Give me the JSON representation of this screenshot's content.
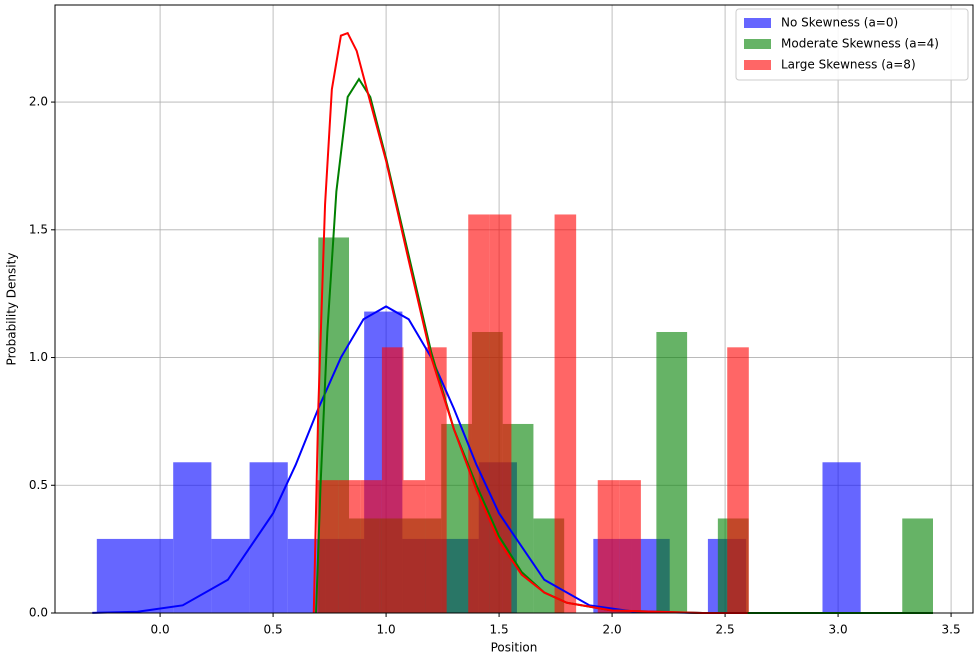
{
  "chart_data": {
    "type": "histogram",
    "xlabel": "Position",
    "ylabel": "Probability Density",
    "xlim": [
      -0.465,
      3.597
    ],
    "ylim": [
      0,
      2.38
    ],
    "xticks": [
      {
        "value": 0,
        "label": "0.0"
      },
      0.5,
      {
        "value": 1,
        "label": "1.0"
      },
      1.5,
      {
        "value": 2,
        "label": "2.0"
      },
      2.5,
      {
        "value": 3,
        "label": "3.0"
      },
      3.5
    ],
    "yticks": [
      {
        "value": 0,
        "label": "0.0"
      },
      0.5,
      {
        "value": 1,
        "label": "1.0"
      },
      1.5,
      {
        "value": 2,
        "label": "2.0"
      }
    ],
    "grid": true,
    "legend": "upper right",
    "alpha": 0.6,
    "series": [
      {
        "name": "No Skewness (a=0)",
        "color": "#0000ff",
        "bins": [
          -0.28,
          -0.111,
          0.058,
          0.227,
          0.396,
          0.565,
          0.734,
          0.903,
          1.072,
          1.241,
          1.41,
          1.579,
          1.748,
          1.917,
          2.086,
          2.255,
          2.424,
          2.593,
          2.762,
          2.931,
          3.1
        ],
        "values": [
          0.29,
          0.29,
          0.59,
          0.29,
          0.59,
          0.29,
          0.29,
          1.18,
          0.29,
          0.29,
          0.59,
          0,
          0,
          0.29,
          0.29,
          0,
          0.29,
          0,
          0,
          0.59
        ]
      },
      {
        "name": "Moderate Skewness (a=4)",
        "color": "#008000",
        "bins": [
          0.7,
          0.836,
          0.972,
          1.108,
          1.244,
          1.38,
          1.516,
          1.652,
          1.788,
          1.924,
          2.06,
          2.196,
          2.332,
          2.468,
          2.604,
          2.74,
          2.876,
          3.012,
          3.148,
          3.284,
          3.42
        ],
        "values": [
          1.47,
          0.37,
          0.37,
          0.37,
          0.74,
          1.1,
          0.74,
          0.37,
          0,
          0,
          0,
          1.1,
          0,
          0.37,
          0,
          0,
          0,
          0,
          0,
          0.37
        ]
      },
      {
        "name": "Large Skewness (a=8)",
        "color": "#ff0000",
        "bins": [
          0.695,
          0.7905,
          0.886,
          0.9815,
          1.077,
          1.1725,
          1.268,
          1.3635,
          1.459,
          1.5545,
          1.65,
          1.7455,
          1.841,
          1.9365,
          2.032,
          2.1275,
          2.223,
          2.3185,
          2.414,
          2.5095,
          2.605
        ],
        "values": [
          0.52,
          0.52,
          0.52,
          1.04,
          0.52,
          1.04,
          0,
          1.56,
          1.56,
          0,
          0,
          1.56,
          0,
          0.52,
          0.52,
          0,
          0,
          0,
          0,
          1.04
        ]
      }
    ],
    "curves": [
      {
        "color": "#0000ff",
        "x": [
          -0.3,
          -0.1,
          0.1,
          0.3,
          0.5,
          0.6,
          0.7,
          0.8,
          0.9,
          1.0,
          1.1,
          1.2,
          1.3,
          1.4,
          1.5,
          1.7,
          1.9,
          2.1,
          2.4,
          2.8,
          3.4
        ],
        "values": [
          0.0006,
          0.005,
          0.03,
          0.13,
          0.39,
          0.58,
          0.8,
          1.0,
          1.15,
          1.2,
          1.15,
          1.0,
          0.8,
          0.58,
          0.39,
          0.13,
          0.03,
          0.005,
          0,
          0,
          0
        ]
      },
      {
        "color": "#008000",
        "x": [
          0.69,
          0.71,
          0.74,
          0.78,
          0.83,
          0.88,
          0.93,
          1.0,
          1.1,
          1.2,
          1.3,
          1.4,
          1.5,
          1.6,
          1.7,
          1.8,
          2.0,
          2.4,
          3.42
        ],
        "values": [
          0,
          0.5,
          1.1,
          1.65,
          2.02,
          2.09,
          2.02,
          1.78,
          1.4,
          1.02,
          0.72,
          0.5,
          0.3,
          0.16,
          0.08,
          0.04,
          0.01,
          0,
          0
        ]
      },
      {
        "color": "#ff0000",
        "x": [
          0.68,
          0.7,
          0.73,
          0.76,
          0.8,
          0.83,
          0.87,
          0.93,
          1.0,
          1.1,
          1.2,
          1.3,
          1.4,
          1.5,
          1.6,
          1.7,
          1.8,
          2.0,
          2.4,
          2.6
        ],
        "values": [
          0,
          0.8,
          1.6,
          2.05,
          2.26,
          2.27,
          2.2,
          2.0,
          1.77,
          1.38,
          1.0,
          0.72,
          0.48,
          0.28,
          0.15,
          0.08,
          0.04,
          0.01,
          0,
          0
        ]
      }
    ]
  }
}
